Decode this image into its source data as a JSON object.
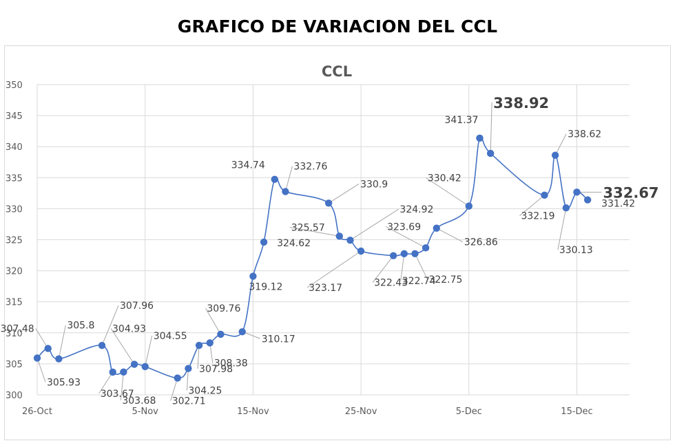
{
  "page_title": "GRAFICO DE VARIACION DEL CCL",
  "chart_data": {
    "type": "line",
    "title": "CCL",
    "xlabel": "",
    "ylabel": "",
    "ylim": [
      300,
      350
    ],
    "yticks": [
      300,
      305,
      310,
      315,
      320,
      325,
      330,
      335,
      340,
      345,
      350
    ],
    "xticks": [
      {
        "date": "2021-10-26",
        "label": "26-Oct"
      },
      {
        "date": "2021-11-05",
        "label": "5-Nov"
      },
      {
        "date": "2021-11-15",
        "label": "15-Nov"
      },
      {
        "date": "2021-11-25",
        "label": "25-Nov"
      },
      {
        "date": "2021-12-05",
        "label": "5-Dec"
      },
      {
        "date": "2021-12-15",
        "label": "15-Dec"
      }
    ],
    "grid": true,
    "line_color": "#4472c4",
    "marker_color": "#4472c4",
    "series": [
      {
        "points": [
          {
            "x": "2021-10-26",
            "y": 305.93,
            "label": "305.93"
          },
          {
            "x": "2021-10-27",
            "y": 307.48,
            "label": "307.48"
          },
          {
            "x": "2021-10-28",
            "y": 305.8,
            "label": "305.8"
          },
          {
            "x": "2021-11-01",
            "y": 307.96,
            "label": "307.96"
          },
          {
            "x": "2021-11-02",
            "y": 303.67,
            "label": "303.67"
          },
          {
            "x": "2021-11-03",
            "y": 303.68,
            "label": "303.68"
          },
          {
            "x": "2021-11-04",
            "y": 304.93,
            "label": "304.93"
          },
          {
            "x": "2021-11-05",
            "y": 304.55,
            "label": "304.55"
          },
          {
            "x": "2021-11-08",
            "y": 302.71,
            "label": "302.71"
          },
          {
            "x": "2021-11-09",
            "y": 304.25,
            "label": "304.25"
          },
          {
            "x": "2021-11-10",
            "y": 307.98,
            "label": "307.98"
          },
          {
            "x": "2021-11-11",
            "y": 308.38,
            "label": "308.38"
          },
          {
            "x": "2021-11-12",
            "y": 309.76,
            "label": "309.76"
          },
          {
            "x": "2021-11-14",
            "y": 310.17,
            "label": "310.17"
          },
          {
            "x": "2021-11-15",
            "y": 319.12,
            "label": "319.12"
          },
          {
            "x": "2021-11-16",
            "y": 324.62,
            "label": "324.62"
          },
          {
            "x": "2021-11-17",
            "y": 334.74,
            "label": "334.74"
          },
          {
            "x": "2021-11-18",
            "y": 332.76,
            "label": "332.76"
          },
          {
            "x": "2021-11-22",
            "y": 330.9,
            "label": "330.9"
          },
          {
            "x": "2021-11-23",
            "y": 325.57,
            "label": "325.57"
          },
          {
            "x": "2021-11-24",
            "y": 324.92,
            "label": "324.92"
          },
          {
            "x": "2021-11-25",
            "y": 323.17,
            "label": "323.17"
          },
          {
            "x": "2021-11-28",
            "y": 322.43,
            "label": "322.43"
          },
          {
            "x": "2021-11-29",
            "y": 322.74,
            "label": "322.74"
          },
          {
            "x": "2021-11-30",
            "y": 322.75,
            "label": "322.75"
          },
          {
            "x": "2021-12-01",
            "y": 323.69,
            "label": "323.69"
          },
          {
            "x": "2021-12-02",
            "y": 326.86,
            "label": "326.86"
          },
          {
            "x": "2021-12-05",
            "y": 330.42,
            "label": "330.42"
          },
          {
            "x": "2021-12-06",
            "y": 341.37,
            "label": "341.37"
          },
          {
            "x": "2021-12-07",
            "y": 338.92,
            "label": "338.92"
          },
          {
            "x": "2021-12-12",
            "y": 332.19,
            "label": "332.19"
          },
          {
            "x": "2021-12-13",
            "y": 338.62,
            "label": "338.62"
          },
          {
            "x": "2021-12-14",
            "y": 330.13,
            "label": "330.13"
          },
          {
            "x": "2021-12-15",
            "y": 332.67,
            "label": "332.67"
          },
          {
            "x": "2021-12-16",
            "y": 331.42,
            "label": "331.42"
          }
        ]
      }
    ]
  }
}
